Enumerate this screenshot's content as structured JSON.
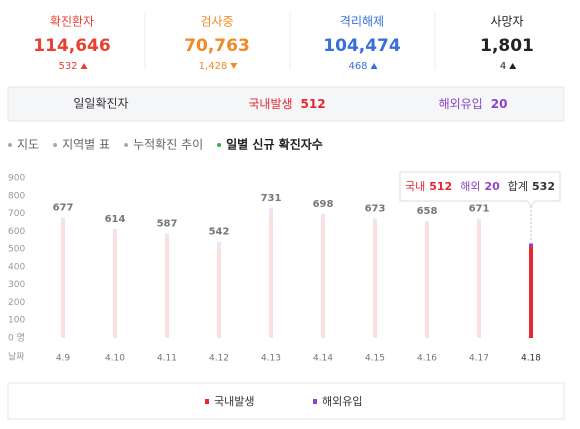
{
  "stats": [
    {
      "label": "확진환자",
      "value": "114,646",
      "change": "532",
      "direction": "up",
      "color": "#e8412f"
    },
    {
      "label": "검사중",
      "value": "70,763",
      "change": "1,428",
      "direction": "down",
      "color": "#f08a24"
    },
    {
      "label": "격리해제",
      "value": "104,474",
      "change": "468",
      "direction": "up",
      "color": "#3a6fd8"
    },
    {
      "label": "사망자",
      "value": "1,801",
      "change": "4",
      "direction": "up",
      "color": "#222222"
    }
  ],
  "tabs": {
    "title": "일일확진자",
    "domestic_label": "국내발생",
    "overseas_label": "해외유입"
  },
  "nav": [
    "지도",
    "지역별 표",
    "누적확진 추이",
    "일별 신규 확진자수"
  ],
  "nav_active": 3,
  "chart_data": {
    "type": "bar",
    "stacked": true,
    "x_label": "날짜",
    "categories": [
      "4.9",
      "4.10",
      "4.11",
      "4.12",
      "4.13",
      "4.14",
      "4.15",
      "4.16",
      "4.17",
      "4.18"
    ],
    "series": [
      {
        "name": "국내발생",
        "color": "#e8262f",
        "values": [
          644,
          587,
          566,
          518,
          700,
          663,
          654,
          643,
          641,
          512
        ]
      },
      {
        "name": "해외유입",
        "color": "#8e44c9",
        "values": [
          33,
          27,
          21,
          24,
          31,
          35,
          19,
          15,
          30,
          20
        ]
      }
    ],
    "totals": [
      677,
      614,
      587,
      542,
      731,
      698,
      673,
      658,
      671,
      532
    ],
    "highlight": 9,
    "tooltip": {
      "domestic_label": "국내",
      "overseas_label": "해외",
      "total_label": "합계"
    },
    "ylim": [
      0,
      900
    ],
    "yticks": [
      {
        "value": 0,
        "label": "0 명"
      },
      100,
      200,
      300,
      400,
      500,
      600,
      700,
      800,
      900
    ],
    "grid": false
  }
}
